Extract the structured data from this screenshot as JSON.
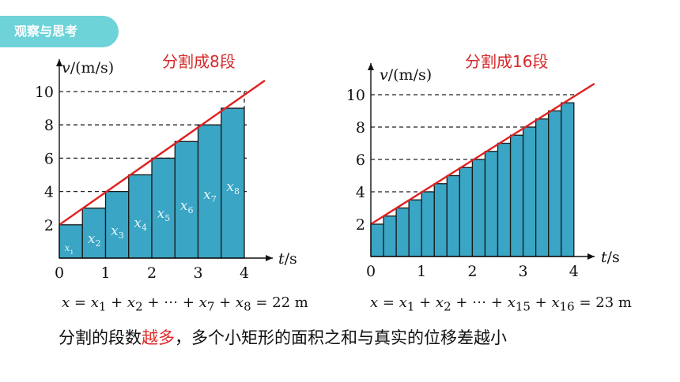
{
  "badge": "观察与思考",
  "chart_data": [
    {
      "type": "bar",
      "title": "分割成8段",
      "ylabel": "v/(m/s)",
      "xlabel": "t/s",
      "xlim": [
        0,
        4
      ],
      "ylim": [
        0,
        10
      ],
      "x_ticks": [
        "0",
        "1",
        "2",
        "3",
        "4"
      ],
      "y_ticks": [
        "2",
        "4",
        "6",
        "8",
        "10"
      ],
      "dashed_levels": [
        4,
        6,
        8,
        10
      ],
      "segments": 8,
      "bar_width": 0.5,
      "values": [
        2,
        3,
        4,
        5,
        6,
        7,
        8,
        9
      ],
      "bar_labels": [
        {
          "base": "x",
          "sub": "1"
        },
        {
          "base": "x",
          "sub": "2"
        },
        {
          "base": "x",
          "sub": "3"
        },
        {
          "base": "x",
          "sub": "4"
        },
        {
          "base": "x",
          "sub": "5"
        },
        {
          "base": "x",
          "sub": "6"
        },
        {
          "base": "x",
          "sub": "7"
        },
        {
          "base": "x",
          "sub": "8"
        }
      ],
      "line": {
        "x": [
          0,
          4
        ],
        "y": [
          2,
          10
        ],
        "color": "#e02020"
      },
      "bar_color": "#3aa5c4",
      "formula": {
        "lhs": "x",
        "terms": [
          "x",
          "1",
          "x",
          "2",
          "x",
          "7",
          "x",
          "8"
        ],
        "ellipsis": "⋯",
        "result": "22 m"
      }
    },
    {
      "type": "bar",
      "title": "分割成16段",
      "ylabel": "v/(m/s)",
      "xlabel": "t/s",
      "xlim": [
        0,
        4
      ],
      "ylim": [
        0,
        10
      ],
      "x_ticks": [
        "0",
        "1",
        "2",
        "3",
        "4"
      ],
      "y_ticks": [
        "2",
        "4",
        "6",
        "8",
        "10"
      ],
      "dashed_levels": [
        4,
        6,
        8,
        10
      ],
      "segments": 16,
      "bar_width": 0.25,
      "values": [
        2,
        2.5,
        3,
        3.5,
        4,
        4.5,
        5,
        5.5,
        6,
        6.5,
        7,
        7.5,
        8,
        8.5,
        9,
        9.5
      ],
      "line": {
        "x": [
          0,
          4
        ],
        "y": [
          2,
          10
        ],
        "color": "#e02020"
      },
      "bar_color": "#3aa5c4",
      "formula": {
        "lhs": "x",
        "terms": [
          "x",
          "1",
          "x",
          "2",
          "x",
          "15",
          "x",
          "16"
        ],
        "ellipsis": "⋯",
        "result": "23 m"
      }
    }
  ],
  "conclusion": {
    "before": "分割的段数",
    "highlight": "越多",
    "after": "，多个小矩形的面积之和与真实的位移差越小"
  }
}
